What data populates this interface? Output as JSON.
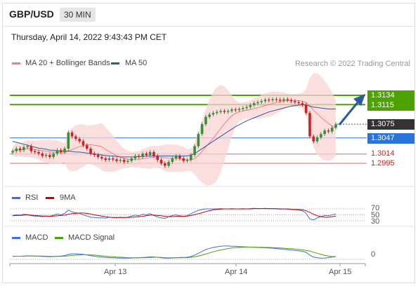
{
  "header": {
    "pair": "GBP/USD",
    "timeframe": "30 MIN",
    "timestamp": "Thursday, April 14, 2022 9:43:43 PM CET",
    "research": "Research © 2022 Trading Central"
  },
  "legends": {
    "ma20": "MA 20 + Bollinger Bands",
    "ma50": "MA 50",
    "rsi": "RSI",
    "rsi_ma": "9MA",
    "macd": "MACD",
    "macd_signal": "MACD Signal"
  },
  "colors": {
    "up": "#3a8e3a",
    "down": "#cc2222",
    "bollinger": "#f9d4d4",
    "ma20": "#f08080",
    "ma50": "#2c5aa0",
    "resistance": "#4ca300",
    "support": "#2a73d8",
    "last": "#333333",
    "arrow": "#2c5aa0"
  },
  "chart_data": [
    {
      "type": "candlestick",
      "x_labels": [
        "Apr 13",
        "Apr 14",
        "Apr 15"
      ],
      "price_levels": [
        {
          "value": "1.3134",
          "kind": "resistance"
        },
        {
          "value": "1.3115",
          "kind": "resistance"
        },
        {
          "value": "1.3075",
          "kind": "last"
        },
        {
          "value": "1.3047",
          "kind": "support"
        },
        {
          "value": "1.3014",
          "kind": "support-text"
        },
        {
          "value": "1.2995",
          "kind": "support-text"
        }
      ],
      "close": [
        1.302,
        1.3025,
        1.3022,
        1.3028,
        1.303,
        1.302,
        1.3018,
        1.3015,
        1.301,
        1.3012,
        1.3008,
        1.3015,
        1.3022,
        1.3018,
        1.3025,
        1.3058,
        1.305,
        1.3045,
        1.304,
        1.3032,
        1.3025,
        1.3015,
        1.3012,
        1.3008,
        1.3005,
        1.3002,
        1.3005,
        1.3003,
        1.3,
        1.3002,
        1.2998,
        1.3,
        1.3005,
        1.301,
        1.3008,
        1.3015,
        1.3012,
        1.3018,
        1.301,
        1.3002,
        1.2995,
        1.299,
        1.2998,
        1.3005,
        1.301,
        1.3005,
        1.3,
        1.3002,
        1.3012,
        1.303,
        1.3055,
        1.3075,
        1.309,
        1.3095,
        1.3098,
        1.31,
        1.3102,
        1.31,
        1.3102,
        1.3105,
        1.3104,
        1.3106,
        1.3108,
        1.311,
        1.3114,
        1.3118,
        1.312,
        1.3122,
        1.3125,
        1.3124,
        1.3126,
        1.3125,
        1.3123,
        1.3126,
        1.3124,
        1.3122,
        1.312,
        1.3118,
        1.3115,
        1.3098,
        1.305,
        1.304,
        1.3048,
        1.3055,
        1.3062,
        1.306,
        1.3068,
        1.3075
      ],
      "ma50": [
        1.304,
        1.3038,
        1.3036,
        1.3034,
        1.3032,
        1.303,
        1.3028,
        1.3026,
        1.3025,
        1.3024,
        1.3022,
        1.3022,
        1.3021,
        1.302,
        1.302,
        1.302,
        1.3019,
        1.3018,
        1.3018,
        1.3017,
        1.3016,
        1.3015,
        1.3014,
        1.3013,
        1.3012,
        1.3011,
        1.301,
        1.301,
        1.3009,
        1.3008,
        1.3008,
        1.3008,
        1.3008,
        1.3008,
        1.3009,
        1.3009,
        1.301,
        1.301,
        1.301,
        1.301,
        1.301,
        1.301,
        1.301,
        1.301,
        1.301,
        1.301,
        1.301,
        1.301,
        1.3012,
        1.3015,
        1.302,
        1.3025,
        1.303,
        1.3035,
        1.304,
        1.3045,
        1.305,
        1.3055,
        1.306,
        1.3065,
        1.307,
        1.3074,
        1.3078,
        1.3082,
        1.3085,
        1.3088,
        1.3091,
        1.3094,
        1.3097,
        1.31,
        1.3102,
        1.3104,
        1.3106,
        1.3108,
        1.311,
        1.3112,
        1.3113,
        1.3114,
        1.3115,
        1.3114,
        1.3112,
        1.311,
        1.3109,
        1.3108,
        1.3107,
        1.3106,
        1.3106,
        1.3106
      ]
    },
    {
      "type": "line",
      "name": "RSI",
      "levels": [
        "70",
        "50",
        "30"
      ],
      "rsi": [
        48,
        50,
        49,
        52,
        51,
        47,
        46,
        45,
        44,
        46,
        45,
        49,
        53,
        50,
        55,
        66,
        60,
        57,
        55,
        50,
        46,
        42,
        41,
        40,
        40,
        39,
        42,
        41,
        40,
        42,
        40,
        42,
        46,
        49,
        47,
        52,
        50,
        54,
        48,
        43,
        40,
        38,
        44,
        48,
        50,
        47,
        45,
        47,
        54,
        60,
        65,
        68,
        70,
        70,
        70,
        70,
        71,
        70,
        70,
        71,
        70,
        70,
        71,
        70,
        71,
        72,
        71,
        71,
        72,
        70,
        71,
        70,
        69,
        70,
        69,
        68,
        67,
        66,
        64,
        55,
        36,
        33,
        40,
        44,
        48,
        47,
        50,
        53
      ],
      "ma9": [
        47,
        48,
        48,
        49,
        50,
        49,
        48,
        47,
        46,
        46,
        45,
        46,
        47,
        48,
        49,
        52,
        54,
        55,
        56,
        56,
        55,
        53,
        50,
        48,
        46,
        44,
        42,
        41,
        41,
        41,
        41,
        41,
        42,
        43,
        44,
        45,
        47,
        49,
        49,
        48,
        47,
        45,
        44,
        44,
        45,
        45,
        45,
        46,
        48,
        51,
        54,
        57,
        61,
        64,
        67,
        68,
        69,
        70,
        70,
        70,
        70,
        70,
        70,
        70,
        70,
        71,
        71,
        71,
        71,
        71,
        71,
        71,
        70,
        70,
        70,
        69,
        68,
        68,
        67,
        64,
        58,
        52,
        47,
        44,
        42,
        42,
        44,
        46
      ]
    },
    {
      "type": "line",
      "name": "MACD",
      "levels": [
        "0"
      ],
      "macd": [
        0.1,
        0.2,
        0.2,
        0.3,
        0.4,
        0.4,
        0.3,
        0.2,
        0.1,
        0.0,
        -0.1,
        0.0,
        0.2,
        0.3,
        0.5,
        1.2,
        1.5,
        1.5,
        1.4,
        1.2,
        0.9,
        0.5,
        0.2,
        -0.1,
        -0.3,
        -0.5,
        -0.6,
        -0.7,
        -0.8,
        -0.8,
        -0.9,
        -0.9,
        -0.8,
        -0.7,
        -0.6,
        -0.5,
        -0.4,
        -0.2,
        -0.2,
        -0.4,
        -0.7,
        -0.9,
        -0.9,
        -0.8,
        -0.6,
        -0.5,
        -0.5,
        -0.4,
        0.0,
        0.8,
        1.8,
        2.8,
        3.8,
        4.5,
        5.0,
        5.4,
        5.7,
        5.8,
        5.8,
        5.7,
        5.6,
        5.5,
        5.4,
        5.3,
        5.2,
        5.1,
        5.0,
        4.9,
        4.8,
        4.7,
        4.6,
        4.4,
        4.2,
        4.0,
        3.8,
        3.6,
        3.4,
        3.2,
        2.9,
        2.3,
        0.8,
        -0.3,
        -0.7,
        -0.9,
        -0.8,
        -0.6,
        -0.3,
        0.0
      ],
      "signal": [
        0.2,
        0.2,
        0.2,
        0.2,
        0.3,
        0.3,
        0.3,
        0.3,
        0.3,
        0.2,
        0.1,
        0.1,
        0.1,
        0.1,
        0.2,
        0.4,
        0.6,
        0.8,
        0.9,
        1.0,
        1.0,
        0.9,
        0.8,
        0.6,
        0.4,
        0.2,
        0.0,
        -0.1,
        -0.3,
        -0.4,
        -0.5,
        -0.6,
        -0.7,
        -0.7,
        -0.7,
        -0.6,
        -0.6,
        -0.5,
        -0.4,
        -0.4,
        -0.5,
        -0.6,
        -0.7,
        -0.7,
        -0.7,
        -0.7,
        -0.6,
        -0.6,
        -0.4,
        -0.1,
        0.3,
        0.8,
        1.4,
        2.0,
        2.6,
        3.2,
        3.6,
        4.0,
        4.4,
        4.7,
        4.9,
        5.0,
        5.1,
        5.2,
        5.2,
        5.2,
        5.1,
        5.1,
        5.0,
        5.0,
        4.9,
        4.8,
        4.7,
        4.6,
        4.4,
        4.3,
        4.1,
        3.9,
        3.7,
        3.4,
        3.0,
        2.4,
        1.8,
        1.2,
        0.7,
        0.3,
        0.0,
        -0.1
      ]
    }
  ]
}
